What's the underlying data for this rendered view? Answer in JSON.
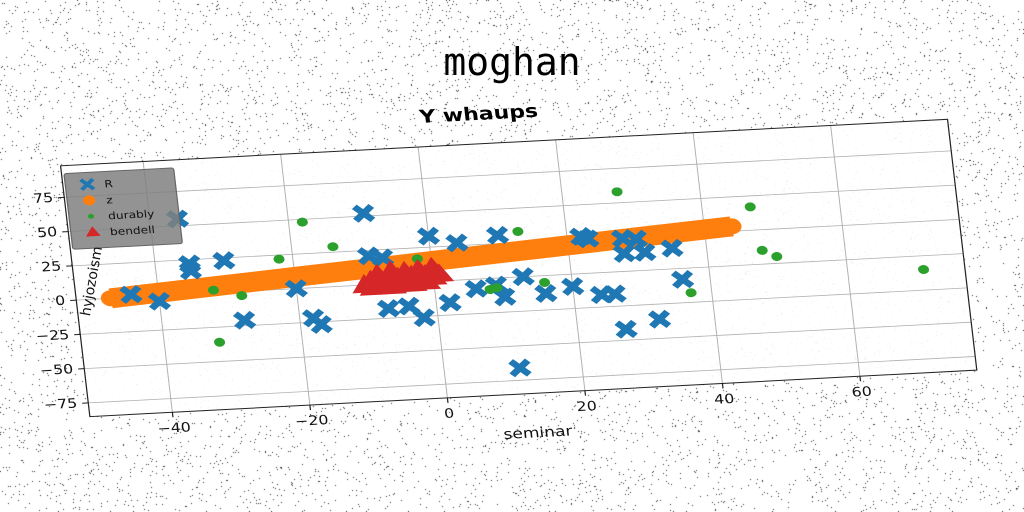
{
  "figure": {
    "suptitle": "moghan"
  },
  "chart_data": {
    "type": "scatter",
    "title": "Y whaups",
    "xlabel": "seminar",
    "ylabel": "hyjozoism",
    "xlim": [
      -52,
      77
    ],
    "ylim": [
      -85,
      98
    ],
    "xticks": [
      -40,
      -20,
      0,
      20,
      40,
      60
    ],
    "yticks": [
      -75,
      -50,
      -25,
      0,
      25,
      50,
      75
    ],
    "grid": true,
    "legend_position": "top-left",
    "series": [
      {
        "name": "R",
        "marker": "x",
        "color": "#1f77b4",
        "points": [
          [
            -44,
            2
          ],
          [
            -40,
            -4
          ],
          [
            -36,
            55
          ],
          [
            -35,
            22
          ],
          [
            -35,
            17
          ],
          [
            -30,
            23
          ],
          [
            -28,
            -21
          ],
          [
            -20,
            0
          ],
          [
            -18,
            -22
          ],
          [
            -17,
            -27
          ],
          [
            -9,
            52
          ],
          [
            -9,
            21
          ],
          [
            -7,
            19
          ],
          [
            -7,
            -18
          ],
          [
            -4,
            -17
          ],
          [
            -2,
            -26
          ],
          [
            0,
            33
          ],
          [
            2,
            -16
          ],
          [
            4,
            27
          ],
          [
            6,
            -7
          ],
          [
            9,
            -5
          ],
          [
            10,
            -14
          ],
          [
            10,
            31
          ],
          [
            11,
            -66
          ],
          [
            13,
            0
          ],
          [
            16,
            -13
          ],
          [
            20,
            -9
          ],
          [
            22,
            27
          ],
          [
            23,
            25
          ],
          [
            24,
            -16
          ],
          [
            26,
            -16
          ],
          [
            27,
            -42
          ],
          [
            28,
            24
          ],
          [
            28,
            13
          ],
          [
            30,
            23
          ],
          [
            31,
            13
          ],
          [
            32,
            -36
          ],
          [
            35,
            15
          ],
          [
            36,
            -8
          ]
        ]
      },
      {
        "name": "z",
        "marker": "o",
        "color": "#ff7f0e",
        "x": [
          -47,
          -40,
          -33,
          -26,
          -19,
          -12,
          -5,
          2,
          9,
          16,
          23,
          30,
          37,
          44
        ],
        "y": [
          0,
          2.2,
          4.4,
          6.6,
          8.8,
          11,
          13.2,
          15.4,
          17.6,
          19.8,
          22,
          24.2,
          26.4,
          28.6
        ]
      },
      {
        "name": "durably",
        "marker": ".",
        "color": "#2ca02c",
        "points": [
          [
            -32,
            2
          ],
          [
            -28,
            -3
          ],
          [
            -32,
            -36
          ],
          [
            -22,
            22
          ],
          [
            -18,
            48
          ],
          [
            -14,
            29
          ],
          [
            -2,
            17
          ],
          [
            8,
            -8
          ],
          [
            9,
            -7
          ],
          [
            13,
            33
          ],
          [
            16,
            -5
          ],
          [
            28,
            58
          ],
          [
            37,
            -18
          ],
          [
            47,
            42
          ],
          [
            48,
            10
          ],
          [
            50,
            5
          ],
          [
            71,
            -10
          ]
        ]
      },
      {
        "name": "bendell",
        "marker": "^",
        "color": "#d62728",
        "points": [
          [
            -10,
            0
          ],
          [
            -9,
            3
          ],
          [
            -8,
            0
          ],
          [
            -8,
            7
          ],
          [
            -7,
            2
          ],
          [
            -6,
            9
          ],
          [
            -6,
            0
          ],
          [
            -5,
            4
          ],
          [
            -4,
            8
          ],
          [
            -4,
            1
          ],
          [
            -3,
            5
          ],
          [
            -2,
            2
          ],
          [
            -2,
            9
          ],
          [
            -1,
            5
          ],
          [
            0,
            3
          ],
          [
            0,
            10
          ],
          [
            1,
            5
          ],
          [
            -9,
            -2
          ],
          [
            -6,
            -2
          ],
          [
            -3,
            -1
          ],
          [
            -1,
            0
          ]
        ]
      }
    ]
  }
}
